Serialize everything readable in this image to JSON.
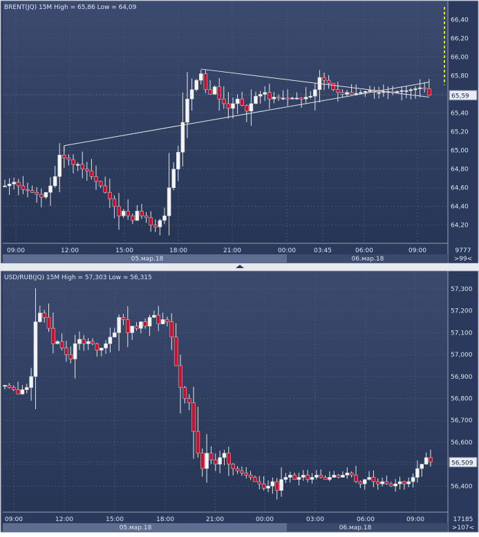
{
  "colors": {
    "background": "#2b3a5c",
    "bg_top": "#3b4a6e",
    "bg_bottom": "#263554",
    "grid": "#475676",
    "text": "#dfe5f0",
    "frame": "#9aa3b5",
    "bull_candle": "#f4f4f4",
    "bear_candle": "#c8102e",
    "wick": "#e8e8e8",
    "trendline": "#e6e6e6",
    "marker": "#e8e000",
    "scroll": "#5d6e90"
  },
  "panels": [
    {
      "header": "BRENT(JQ) 15M High = 65,86 Low = 64,09",
      "last_price_label": "65,59",
      "side_counts": [
        "9777",
        ">99<"
      ],
      "date_labels": [
        "05.мар.18",
        "06.мар.18"
      ]
    },
    {
      "header": "USD/RUB(JQ) 15M High = 57,303 Low = 56,315",
      "last_price_label": "56,509",
      "side_counts": [
        "17185",
        ">107<"
      ],
      "date_labels": [
        "05.мар.18",
        "06.мар.18"
      ]
    }
  ],
  "chart_data": [
    {
      "type": "candlestick",
      "title": "BRENT(JQ) 15M",
      "high": 65.86,
      "low": 64.09,
      "last_price": 65.59,
      "ylim": [
        64.05,
        66.55
      ],
      "y_ticks": [
        64.2,
        64.4,
        64.6,
        64.8,
        65.0,
        65.2,
        65.4,
        65.6,
        65.8,
        66.0,
        66.2,
        66.4
      ],
      "y_tick_labels": [
        "64,20",
        "64,40",
        "64,60",
        "64,80",
        "65,00",
        "65,20",
        "65,40",
        "65,60",
        "65,80",
        "66,00",
        "66,20",
        "66,40"
      ],
      "x_tick_labels": [
        "09:00",
        "12:00",
        "15:00",
        "18:00",
        "21:00",
        "00:00",
        "03:45",
        "06:00",
        "09:00"
      ],
      "dates": [
        "05.мар.18",
        "06.мар.18"
      ],
      "trend_lines": [
        {
          "from": [
            13,
            65.05
          ],
          "to": [
            93,
            65.73
          ]
        },
        {
          "from": [
            43,
            65.87
          ],
          "to": [
            93,
            65.57
          ]
        }
      ],
      "close": [
        64.62,
        64.64,
        64.66,
        64.62,
        64.58,
        64.57,
        64.55,
        64.53,
        64.5,
        64.55,
        64.62,
        64.72,
        64.95,
        64.92,
        64.9,
        64.85,
        64.85,
        64.8,
        64.78,
        64.72,
        64.67,
        64.62,
        64.55,
        64.48,
        64.4,
        64.3,
        64.35,
        64.3,
        64.25,
        64.35,
        64.3,
        64.28,
        64.2,
        64.18,
        64.25,
        64.3,
        64.6,
        64.8,
        64.98,
        65.3,
        65.55,
        65.65,
        65.75,
        65.82,
        65.65,
        65.6,
        65.68,
        65.55,
        65.5,
        65.45,
        65.5,
        65.55,
        65.48,
        65.42,
        65.5,
        65.58,
        65.6,
        65.62,
        65.55,
        65.57,
        65.56,
        65.56,
        65.55,
        65.56,
        65.56,
        65.55,
        65.57,
        65.58,
        65.65,
        65.78,
        65.75,
        65.72,
        65.65,
        65.62,
        65.6,
        65.62,
        65.6,
        65.61,
        65.62,
        65.63,
        65.64,
        65.62,
        65.62,
        65.63,
        65.63,
        65.62,
        65.63,
        65.64,
        65.64,
        65.65,
        65.66,
        65.67,
        65.66,
        65.59
      ]
    },
    {
      "type": "candlestick",
      "title": "USD/RUB(JQ) 15M",
      "high": 57.303,
      "low": 56.315,
      "last_price": 56.509,
      "ylim": [
        56.3,
        57.36
      ],
      "y_ticks": [
        56.4,
        56.5,
        56.6,
        56.7,
        56.8,
        56.9,
        57.0,
        57.1,
        57.2,
        57.3
      ],
      "y_tick_labels": [
        "56,400",
        "56,500",
        "56,600",
        "56,700",
        "56,800",
        "56,900",
        "57,000",
        "57,100",
        "57,200",
        "57,300"
      ],
      "x_tick_labels": [
        "09:00",
        "12:00",
        "15:00",
        "18:00",
        "21:00",
        "00:00",
        "03:00",
        "06:00",
        "09:00"
      ],
      "dates": [
        "05.мар.18",
        "06.мар.18"
      ],
      "close": [
        56.86,
        56.85,
        56.84,
        56.82,
        56.84,
        56.85,
        56.9,
        57.15,
        57.19,
        57.17,
        57.12,
        57.05,
        57.06,
        57.03,
        57.0,
        56.98,
        57.05,
        57.07,
        57.05,
        57.06,
        57.05,
        57.02,
        57.03,
        57.05,
        57.08,
        57.1,
        57.17,
        57.16,
        57.1,
        57.13,
        57.12,
        57.15,
        57.13,
        57.17,
        57.18,
        57.14,
        57.16,
        57.15,
        57.08,
        56.95,
        56.85,
        56.8,
        56.78,
        56.65,
        56.55,
        56.48,
        56.55,
        56.52,
        56.5,
        56.53,
        56.55,
        56.5,
        56.48,
        56.47,
        56.46,
        56.45,
        56.44,
        56.42,
        56.41,
        56.39,
        56.4,
        56.42,
        56.38,
        56.43,
        56.44,
        56.45,
        56.43,
        56.44,
        56.45,
        56.43,
        56.44,
        56.45,
        56.44,
        56.43,
        56.44,
        56.45,
        56.44,
        56.45,
        56.46,
        56.45,
        56.42,
        56.41,
        56.43,
        56.44,
        56.42,
        56.41,
        56.42,
        56.41,
        56.4,
        56.41,
        56.42,
        56.41,
        56.42,
        56.44,
        56.48,
        56.5,
        56.53,
        56.51
      ]
    }
  ]
}
